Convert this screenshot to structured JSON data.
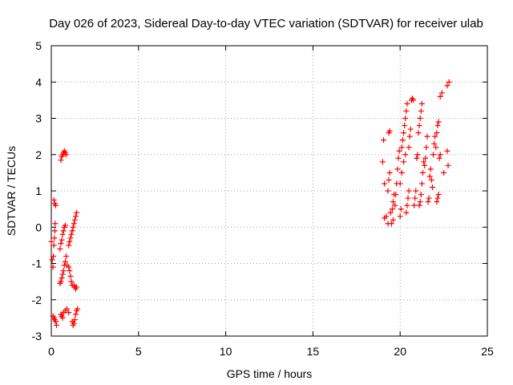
{
  "chart_data": {
    "type": "scatter",
    "title": "Day 026 of 2023, Sidereal Day-to-day VTEC variation (SDTVAR) for receiver ulab",
    "xlabel": "GPS time / hours",
    "ylabel": "SDTVAR / TECUs",
    "xlim": [
      0,
      25
    ],
    "ylim": [
      -3,
      5
    ],
    "xticks": [
      "0",
      "5",
      "10",
      "15",
      "20",
      "25"
    ],
    "yticks": [
      "-3",
      "-2",
      "-1",
      "0",
      "1",
      "2",
      "3",
      "4",
      "5"
    ],
    "grid": true,
    "marker": "plus",
    "color": "#ff0000",
    "series": [
      {
        "name": "SDTVAR",
        "points": [
          [
            0.0,
            -0.4
          ],
          [
            0.05,
            -0.9
          ],
          [
            0.1,
            -1.1
          ],
          [
            0.12,
            -0.8
          ],
          [
            0.15,
            -0.5
          ],
          [
            0.18,
            -0.3
          ],
          [
            0.2,
            -0.1
          ],
          [
            0.22,
            0.1
          ],
          [
            0.1,
            -2.45
          ],
          [
            0.15,
            -2.5
          ],
          [
            0.2,
            -2.55
          ],
          [
            0.25,
            -2.6
          ],
          [
            0.3,
            -2.7
          ],
          [
            0.15,
            0.75
          ],
          [
            0.2,
            0.65
          ],
          [
            0.25,
            0.6
          ],
          [
            0.55,
            1.85
          ],
          [
            0.6,
            1.95
          ],
          [
            0.65,
            2.0
          ],
          [
            0.7,
            2.05
          ],
          [
            0.75,
            2.1
          ],
          [
            0.8,
            2.05
          ],
          [
            0.85,
            2.0
          ],
          [
            0.5,
            -1.55
          ],
          [
            0.55,
            -1.5
          ],
          [
            0.6,
            -1.4
          ],
          [
            0.65,
            -1.3
          ],
          [
            0.7,
            -1.2
          ],
          [
            0.75,
            -1.05
          ],
          [
            0.8,
            -0.95
          ],
          [
            0.85,
            -0.8
          ],
          [
            0.5,
            -0.6
          ],
          [
            0.55,
            -0.45
          ],
          [
            0.6,
            -0.35
          ],
          [
            0.65,
            -0.2
          ],
          [
            0.7,
            -0.1
          ],
          [
            0.75,
            0.0
          ],
          [
            0.8,
            0.05
          ],
          [
            0.55,
            -2.4
          ],
          [
            0.6,
            -2.45
          ],
          [
            0.65,
            -2.5
          ],
          [
            0.7,
            -2.35
          ],
          [
            0.8,
            -2.3
          ],
          [
            0.9,
            -2.25
          ],
          [
            1.0,
            -2.35
          ],
          [
            0.9,
            -1.05
          ],
          [
            1.0,
            -1.1
          ],
          [
            1.05,
            -1.2
          ],
          [
            1.1,
            -1.35
          ],
          [
            1.15,
            -1.5
          ],
          [
            1.2,
            -1.6
          ],
          [
            1.0,
            -0.5
          ],
          [
            1.05,
            -0.4
          ],
          [
            1.1,
            -0.3
          ],
          [
            1.15,
            -0.2
          ],
          [
            1.2,
            -0.1
          ],
          [
            1.25,
            0.0
          ],
          [
            1.2,
            -2.6
          ],
          [
            1.25,
            -2.7
          ],
          [
            1.3,
            -2.65
          ],
          [
            1.35,
            -2.55
          ],
          [
            1.4,
            -2.4
          ],
          [
            1.45,
            -2.3
          ],
          [
            1.5,
            -2.25
          ],
          [
            1.3,
            -1.6
          ],
          [
            1.35,
            -1.65
          ],
          [
            1.4,
            -1.7
          ],
          [
            1.45,
            -1.65
          ],
          [
            1.3,
            0.1
          ],
          [
            1.35,
            0.2
          ],
          [
            1.4,
            0.3
          ],
          [
            1.45,
            0.4
          ],
          [
            19.0,
            1.8
          ],
          [
            19.05,
            2.4
          ],
          [
            19.1,
            1.2
          ],
          [
            19.1,
            0.25
          ],
          [
            19.2,
            0.3
          ],
          [
            19.3,
            0.1
          ],
          [
            19.35,
            2.6
          ],
          [
            19.4,
            2.65
          ],
          [
            19.3,
            1.0
          ],
          [
            19.35,
            1.3
          ],
          [
            19.4,
            1.5
          ],
          [
            19.45,
            0.4
          ],
          [
            19.5,
            0.1
          ],
          [
            19.55,
            0.5
          ],
          [
            19.6,
            0.7
          ],
          [
            19.65,
            0.9
          ],
          [
            19.6,
            0.2
          ],
          [
            19.7,
            0.6
          ],
          [
            19.75,
            0.9
          ],
          [
            19.8,
            1.2
          ],
          [
            19.85,
            1.6
          ],
          [
            19.9,
            1.9
          ],
          [
            19.95,
            2.1
          ],
          [
            20.0,
            0.3
          ],
          [
            20.05,
            0.5
          ],
          [
            20.1,
            2.2
          ],
          [
            20.15,
            2.4
          ],
          [
            20.2,
            2.6
          ],
          [
            20.25,
            2.8
          ],
          [
            20.3,
            3.0
          ],
          [
            20.35,
            3.2
          ],
          [
            20.4,
            3.4
          ],
          [
            20.0,
            1.2
          ],
          [
            20.1,
            1.5
          ],
          [
            20.2,
            1.8
          ],
          [
            20.3,
            2.0
          ],
          [
            20.35,
            0.4
          ],
          [
            20.4,
            0.6
          ],
          [
            20.45,
            0.8
          ],
          [
            20.5,
            1.0
          ],
          [
            20.5,
            2.2
          ],
          [
            20.55,
            2.5
          ],
          [
            20.6,
            2.7
          ],
          [
            20.65,
            3.5
          ],
          [
            20.7,
            3.55
          ],
          [
            20.75,
            3.5
          ],
          [
            20.8,
            0.6
          ],
          [
            20.85,
            0.8
          ],
          [
            20.9,
            1.0
          ],
          [
            20.95,
            1.9
          ],
          [
            21.0,
            2.0
          ],
          [
            21.05,
            2.6
          ],
          [
            21.1,
            2.8
          ],
          [
            21.15,
            3.0
          ],
          [
            21.2,
            3.2
          ],
          [
            21.25,
            3.4
          ],
          [
            21.1,
            0.6
          ],
          [
            21.15,
            0.7
          ],
          [
            21.2,
            0.9
          ],
          [
            21.25,
            1.2
          ],
          [
            21.3,
            1.5
          ],
          [
            21.35,
            1.8
          ],
          [
            21.4,
            1.7
          ],
          [
            21.45,
            1.9
          ],
          [
            21.5,
            2.2
          ],
          [
            21.55,
            2.5
          ],
          [
            21.6,
            0.7
          ],
          [
            21.65,
            0.8
          ],
          [
            21.7,
            1.4
          ],
          [
            21.75,
            1.6
          ],
          [
            21.8,
            1.3
          ],
          [
            21.85,
            1.1
          ],
          [
            21.9,
            2.0
          ],
          [
            21.95,
            2.3
          ],
          [
            22.0,
            2.5
          ],
          [
            22.05,
            2.2
          ],
          [
            22.1,
            0.7
          ],
          [
            22.15,
            0.8
          ],
          [
            22.2,
            0.9
          ],
          [
            22.25,
            1.9
          ],
          [
            22.1,
            2.6
          ],
          [
            22.15,
            2.8
          ],
          [
            22.2,
            2.9
          ],
          [
            22.3,
            2.0
          ],
          [
            22.5,
            1.5
          ],
          [
            22.7,
            2.1
          ],
          [
            22.75,
            1.7
          ],
          [
            22.7,
            3.9
          ],
          [
            22.8,
            4.0
          ],
          [
            22.3,
            3.6
          ],
          [
            22.4,
            3.7
          ]
        ]
      }
    ]
  }
}
